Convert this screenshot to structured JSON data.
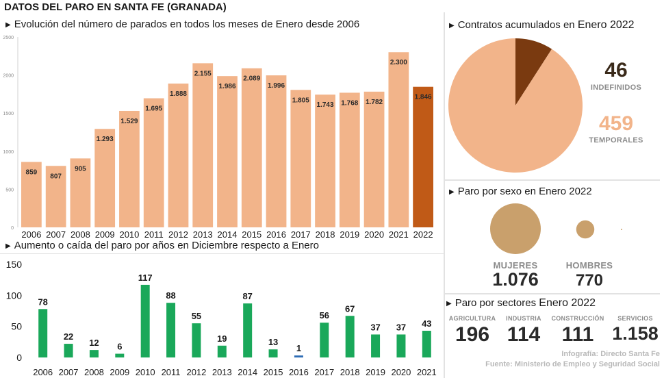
{
  "title": "DATOS DEL PARO EN SANTA FE (GRANADA)",
  "top_chart": {
    "heading": "Evolución del número de parados en todos los meses de Enero desde 2006",
    "highlight_color": "#c05a17",
    "bar_color": "#f2b48a"
  },
  "bottom_chart": {
    "heading_pre": "Aumento o caída del paro por años en",
    "heading_mid": "Diciembre",
    "heading_post": "respecto a Enero",
    "bar_color": "#1aa85a",
    "negative_color": "#2f6db5"
  },
  "contracts": {
    "heading_pre": "Contratos acumulados en",
    "heading_big": "Enero 2022",
    "indefinidos_value": "46",
    "indefinidos_label": "INDEFINIDOS",
    "temporales_value": "459",
    "temporales_label": "TEMPORALES",
    "colors": {
      "indefinidos": "#7a3a10",
      "temporales": "#f2b48a"
    }
  },
  "sex": {
    "heading": "Paro por sexo en Enero 2022",
    "mujeres_label": "MUJERES",
    "mujeres_value": "1.076",
    "hombres_label": "HOMBRES",
    "hombres_value": "770",
    "bubble_color": "#c9a06c"
  },
  "sectors": {
    "heading_pre": "Paro por sectores",
    "heading_big": "Enero 2022",
    "items": [
      {
        "label": "AGRICULTURA",
        "value": "196"
      },
      {
        "label": "INDUSTRIA",
        "value": "114"
      },
      {
        "label": "CONSTRUCCIÓN",
        "value": "111"
      },
      {
        "label": "SERVICIOS",
        "value": "1.158"
      }
    ]
  },
  "credits": {
    "infografia": "Infografía: Directo Santa Fe",
    "fuente": "Fuente: Ministerio de Empleo y Seguridad Social"
  },
  "chart_data": [
    {
      "type": "bar",
      "title": "Evolución del número de parados en todos los meses de Enero desde 2006",
      "categories": [
        "2006",
        "2007",
        "2008",
        "2009",
        "2010",
        "2011",
        "2012",
        "2013",
        "2014",
        "2015",
        "2016",
        "2017",
        "2018",
        "2019",
        "2020",
        "2021",
        "2022"
      ],
      "values": [
        859,
        807,
        905,
        1293,
        1529,
        1695,
        1888,
        2155,
        1986,
        2089,
        1996,
        1805,
        1743,
        1768,
        1782,
        2300,
        1846
      ],
      "value_labels": [
        "859",
        "807",
        "905",
        "1.293",
        "1.529",
        "1.695",
        "1.888",
        "2.155",
        "1.986",
        "2.089",
        "1.996",
        "1.805",
        "1.743",
        "1.768",
        "1.782",
        "2.300",
        "1.846"
      ],
      "y_ticks": [
        "0",
        "500",
        "1000",
        "1500",
        "2000",
        "2500"
      ],
      "ylim": [
        0,
        2500
      ],
      "highlight_category": "2022",
      "grid": false
    },
    {
      "type": "bar",
      "title": "Aumento o caída del paro por años en Diciembre respecto a Enero",
      "categories": [
        "2006",
        "2007",
        "2008",
        "2009",
        "2010",
        "2011",
        "2012",
        "2013",
        "2014",
        "2015",
        "2016",
        "2017",
        "2018",
        "2019",
        "2020",
        "2021"
      ],
      "values": [
        78,
        22,
        12,
        6,
        117,
        88,
        55,
        19,
        87,
        13,
        1,
        56,
        67,
        37,
        37,
        43
      ],
      "value_labels": [
        "78",
        "22",
        "12",
        "6",
        "117",
        "88",
        "55",
        "19",
        "87",
        "13",
        "1",
        "56",
        "67",
        "37",
        "37",
        "43"
      ],
      "y_ticks": [
        "0",
        "50",
        "100",
        "150"
      ],
      "ylim": [
        0,
        150
      ],
      "grid": false
    },
    {
      "type": "pie",
      "title": "Contratos acumulados en Enero 2022",
      "labels": [
        "INDEFINIDOS",
        "TEMPORALES"
      ],
      "values": [
        46,
        459
      ]
    },
    {
      "type": "scatter",
      "title": "Paro por sexo en Enero 2022",
      "labels": [
        "MUJERES",
        "HOMBRES"
      ],
      "values": [
        1076,
        770
      ]
    }
  ]
}
